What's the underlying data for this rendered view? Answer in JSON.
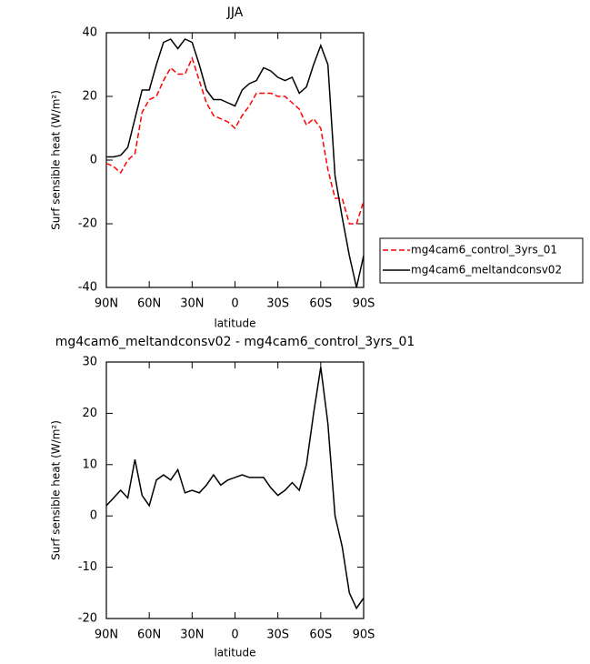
{
  "chart_data": [
    {
      "type": "line",
      "title": "JJA",
      "xlabel": "latitude",
      "ylabel": "Surf sensible heat (W/m²)",
      "x": [
        90,
        85,
        80,
        75,
        70,
        65,
        60,
        55,
        50,
        45,
        40,
        35,
        30,
        25,
        20,
        15,
        10,
        5,
        0,
        -5,
        -10,
        -15,
        -20,
        -25,
        -30,
        -35,
        -40,
        -45,
        -50,
        -55,
        -60,
        -65,
        -70,
        -75,
        -80,
        -85,
        -90
      ],
      "series": [
        {
          "name": "mg4cam6_control_3yrs_01",
          "color": "#ff0000",
          "dash": true,
          "values": [
            -1,
            -2,
            -4,
            0,
            2,
            15,
            19,
            20,
            25,
            29,
            27,
            27,
            32,
            25,
            18,
            14,
            13,
            12,
            10,
            14,
            17,
            21,
            21,
            21,
            20,
            20,
            18,
            16,
            11,
            13,
            10,
            -3,
            -12,
            -12,
            -20,
            -20,
            -13
          ]
        },
        {
          "name": "mg4cam6_meltandconsv02",
          "color": "#000000",
          "dash": false,
          "values": [
            1,
            1,
            1.5,
            4,
            13,
            22,
            22,
            30,
            37,
            38,
            35,
            38,
            37,
            30,
            22,
            19,
            19,
            18,
            17,
            22,
            24,
            25,
            29,
            28,
            26,
            25,
            26,
            21,
            23,
            30,
            36,
            30,
            -5,
            -18,
            -30,
            -40,
            -30
          ]
        }
      ],
      "xlim": [
        90,
        -90
      ],
      "xticks": [
        {
          "value": 90,
          "label": "90N"
        },
        {
          "value": 60,
          "label": "60N"
        },
        {
          "value": 30,
          "label": "30N"
        },
        0,
        {
          "value": -30,
          "label": "30S"
        },
        {
          "value": -60,
          "label": "60S"
        },
        {
          "value": -90,
          "label": "90S"
        }
      ],
      "ylim": [
        -40,
        40
      ],
      "yticks": [
        -40,
        -20,
        0,
        20,
        40
      ],
      "legend": "right"
    },
    {
      "type": "line",
      "title": "mg4cam6_meltandconsv02 - mg4cam6_control_3yrs_01",
      "xlabel": "latitude",
      "ylabel": "Surf sensible heat (W/m²)",
      "x": [
        90,
        85,
        80,
        75,
        70,
        65,
        60,
        55,
        50,
        45,
        40,
        35,
        30,
        25,
        20,
        15,
        10,
        5,
        0,
        -5,
        -10,
        -15,
        -20,
        -25,
        -30,
        -35,
        -40,
        -45,
        -50,
        -55,
        -60,
        -65,
        -70,
        -75,
        -80,
        -85,
        -90
      ],
      "series": [
        {
          "color": "#000000",
          "dash": false,
          "values": [
            2,
            3.5,
            5,
            3.5,
            11,
            4,
            2,
            7,
            8,
            7,
            9,
            4.5,
            5,
            4.5,
            6,
            8,
            6,
            7,
            7.5,
            8,
            7.5,
            7.5,
            7.5,
            5.5,
            4,
            5,
            6.5,
            5,
            10,
            20,
            29,
            18,
            0,
            -6,
            -15,
            -18,
            -16
          ]
        }
      ],
      "xlim": [
        90,
        -90
      ],
      "xticks": [
        {
          "value": 90,
          "label": "90N"
        },
        {
          "value": 60,
          "label": "60N"
        },
        {
          "value": 30,
          "label": "30N"
        },
        0,
        {
          "value": -30,
          "label": "30S"
        },
        {
          "value": -60,
          "label": "60S"
        },
        {
          "value": -90,
          "label": "90S"
        }
      ],
      "ylim": [
        -20,
        30
      ],
      "yticks": [
        -20,
        -10,
        0,
        10,
        20,
        30
      ]
    }
  ]
}
